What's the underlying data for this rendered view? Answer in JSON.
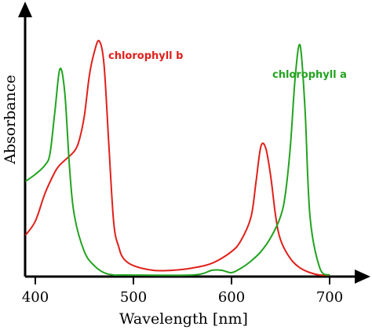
{
  "chart_data": {
    "type": "line",
    "xlabel": "Wavelength [nm]",
    "ylabel": "Absorbance",
    "xlim": [
      390,
      710
    ],
    "ylim": [
      0,
      1.0
    ],
    "xticks": [
      400,
      500,
      600,
      700
    ],
    "yticks_shown": false,
    "grid": false,
    "legend": "inline labels",
    "series": [
      {
        "name": "chlorophyll b",
        "color": "#e0201b",
        "x": [
          390,
          400,
          410,
          420,
          425,
          430,
          440,
          445,
          450,
          455,
          460,
          465,
          470,
          475,
          480,
          485,
          490,
          500,
          520,
          540,
          560,
          580,
          600,
          610,
          620,
          625,
          630,
          635,
          640,
          645,
          650,
          660,
          670,
          680,
          690,
          700
        ],
        "y": [
          0.17,
          0.23,
          0.35,
          0.44,
          0.47,
          0.49,
          0.53,
          0.58,
          0.68,
          0.85,
          0.95,
          1.0,
          0.9,
          0.55,
          0.22,
          0.12,
          0.07,
          0.04,
          0.02,
          0.02,
          0.03,
          0.05,
          0.1,
          0.15,
          0.25,
          0.4,
          0.55,
          0.54,
          0.42,
          0.25,
          0.15,
          0.07,
          0.03,
          0.01,
          0.0,
          0.0
        ]
      },
      {
        "name": "chlorophyll a",
        "color": "#22a31f",
        "x": [
          390,
          400,
          410,
          415,
          420,
          425,
          430,
          435,
          440,
          450,
          460,
          470,
          480,
          490,
          560,
          580,
          590,
          600,
          610,
          620,
          630,
          640,
          650,
          655,
          660,
          665,
          670,
          675,
          680,
          690,
          700
        ],
        "y": [
          0.4,
          0.43,
          0.47,
          0.52,
          0.7,
          0.88,
          0.78,
          0.45,
          0.25,
          0.1,
          0.04,
          0.01,
          0.0,
          0.0,
          0.0,
          0.02,
          0.02,
          0.01,
          0.03,
          0.06,
          0.1,
          0.16,
          0.25,
          0.35,
          0.55,
          0.85,
          0.98,
          0.7,
          0.25,
          0.03,
          0.0
        ]
      }
    ]
  }
}
